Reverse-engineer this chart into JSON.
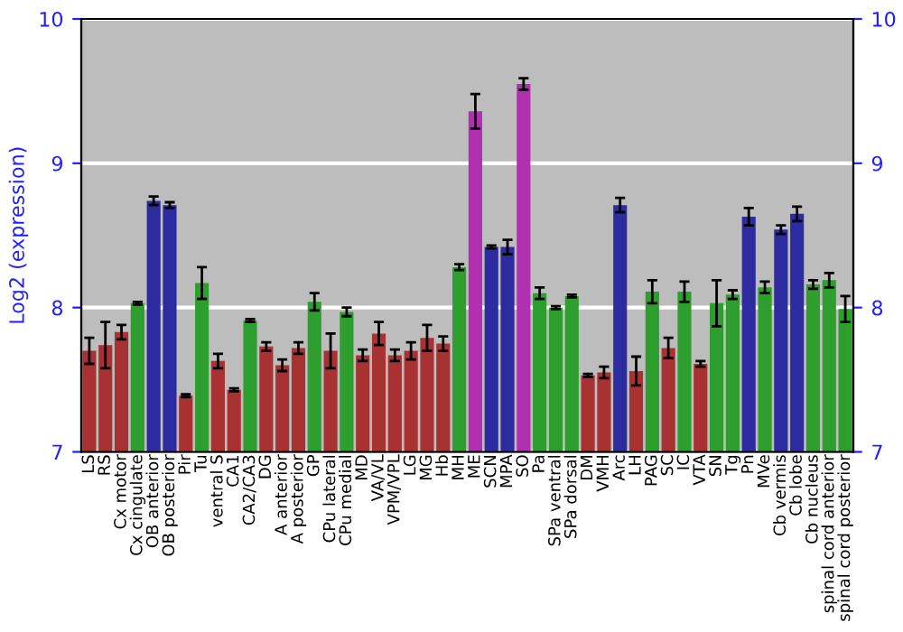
{
  "chart_data": {
    "type": "bar",
    "ylabel": "Log2 (expression)",
    "categories": [
      "LS",
      "RS",
      "Cx motor",
      "Cx cingulate",
      "OB anterior",
      "OB posterior",
      "Pir",
      "Tu",
      "ventral S",
      "CA1",
      "CA2/CA3",
      "DG",
      "A anterior",
      "A posterior",
      "GP",
      "CPu lateral",
      "CPu medial",
      "MD",
      "VA/VL",
      "VPM/VPL",
      "LG",
      "MG",
      "Hb",
      "MH",
      "ME",
      "SCN",
      "MPA",
      "SO",
      "Pa",
      "SPa ventral",
      "SPa dorsal",
      "DM",
      "VMH",
      "Arc",
      "LH",
      "PAG",
      "SC",
      "IC",
      "VTA",
      "SN",
      "Tg",
      "Pn",
      "MVe",
      "Cb vermis",
      "Cb lobe",
      "Cb nucleus",
      "spinal cord anterior",
      "spinal cord posterior"
    ],
    "values": [
      7.7,
      7.74,
      7.83,
      8.03,
      8.74,
      8.71,
      7.39,
      8.17,
      7.63,
      7.43,
      7.91,
      7.73,
      7.6,
      7.72,
      8.04,
      7.7,
      7.97,
      7.67,
      7.82,
      7.67,
      7.7,
      7.79,
      7.75,
      8.28,
      9.36,
      8.42,
      8.42,
      9.55,
      8.1,
      8.0,
      8.08,
      7.53,
      7.55,
      8.71,
      7.56,
      8.11,
      7.72,
      8.11,
      7.61,
      8.03,
      8.09,
      8.63,
      8.14,
      8.54,
      8.65,
      8.16,
      8.19,
      7.99
    ],
    "errors": [
      0.09,
      0.16,
      0.05,
      0.01,
      0.03,
      0.02,
      0.01,
      0.11,
      0.05,
      0.01,
      0.01,
      0.03,
      0.04,
      0.04,
      0.06,
      0.12,
      0.03,
      0.04,
      0.08,
      0.04,
      0.06,
      0.09,
      0.05,
      0.02,
      0.12,
      0.01,
      0.05,
      0.04,
      0.04,
      0.01,
      0.01,
      0.01,
      0.04,
      0.05,
      0.1,
      0.08,
      0.07,
      0.07,
      0.02,
      0.16,
      0.03,
      0.06,
      0.04,
      0.03,
      0.05,
      0.03,
      0.05,
      0.09
    ],
    "colors": [
      "#a83232",
      "#a83232",
      "#a83232",
      "#2e9e2e",
      "#2c2ca0",
      "#2c2ca0",
      "#a83232",
      "#2e9e2e",
      "#a83232",
      "#a83232",
      "#2e9e2e",
      "#a83232",
      "#a83232",
      "#a83232",
      "#2e9e2e",
      "#a83232",
      "#2e9e2e",
      "#a83232",
      "#a83232",
      "#a83232",
      "#a83232",
      "#a83232",
      "#a83232",
      "#2e9e2e",
      "#b030b0",
      "#2c2ca0",
      "#2c2ca0",
      "#b030b0",
      "#2e9e2e",
      "#2e9e2e",
      "#2e9e2e",
      "#a83232",
      "#a83232",
      "#2c2ca0",
      "#a83232",
      "#2e9e2e",
      "#a83232",
      "#2e9e2e",
      "#a83232",
      "#2e9e2e",
      "#2e9e2e",
      "#2c2ca0",
      "#2e9e2e",
      "#2c2ca0",
      "#2c2ca0",
      "#2e9e2e",
      "#2e9e2e",
      "#2e9e2e"
    ],
    "ylim": [
      7,
      10
    ],
    "yticks": [
      7,
      8,
      9,
      10
    ],
    "y2lim": [
      7,
      10
    ],
    "y2ticks": [
      7,
      8,
      9,
      10
    ],
    "grid": "y"
  }
}
